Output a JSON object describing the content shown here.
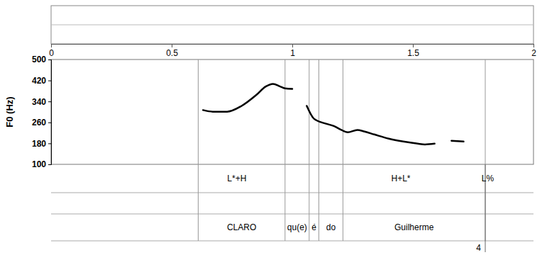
{
  "chart_data": {
    "type": "line",
    "y_label": "F0 (Hz)",
    "x": [
      0.63,
      0.67,
      0.73,
      0.79,
      0.85,
      0.89,
      0.92,
      0.95,
      0.97,
      1.0,
      1.02,
      1.06,
      1.09,
      1.14,
      1.17,
      1.2,
      1.23,
      1.27,
      1.3,
      1.34,
      1.4,
      1.46,
      1.52,
      1.55,
      1.59,
      1.62,
      1.66,
      1.71
    ],
    "series": [
      {
        "color": "#000000",
        "values": [
          307,
          301,
          301,
          323,
          364,
          397,
          407,
          397,
          390,
          388,
          null,
          323,
          274,
          255,
          247,
          233,
          222,
          231,
          225,
          214,
          198,
          187,
          179,
          176,
          179,
          null,
          190,
          187
        ]
      }
    ],
    "xlim": [
      0,
      2
    ],
    "xticks": [
      0,
      0.5,
      1,
      1.5,
      2
    ],
    "ylim": [
      100,
      500
    ],
    "yticks": [
      500,
      420,
      340,
      260,
      180,
      100
    ],
    "grid": false,
    "tones": [
      {
        "label": "L*+H",
        "x": 0.77
      },
      {
        "label": "H+L*",
        "x": 1.45
      },
      {
        "label": "L%",
        "x": 1.81
      }
    ],
    "words": [
      {
        "label": "CLARO",
        "start": 0.61,
        "end": 0.97
      },
      {
        "label": "qu(e)",
        "start": 0.97,
        "end": 1.07
      },
      {
        "label": "é",
        "start": 1.07,
        "end": 1.11
      },
      {
        "label": "do",
        "start": 1.11,
        "end": 1.21
      },
      {
        "label": "Guilherme",
        "start": 1.21,
        "end": 1.8
      }
    ],
    "break_indices": [
      {
        "label": "4",
        "x": 1.8
      }
    ]
  }
}
